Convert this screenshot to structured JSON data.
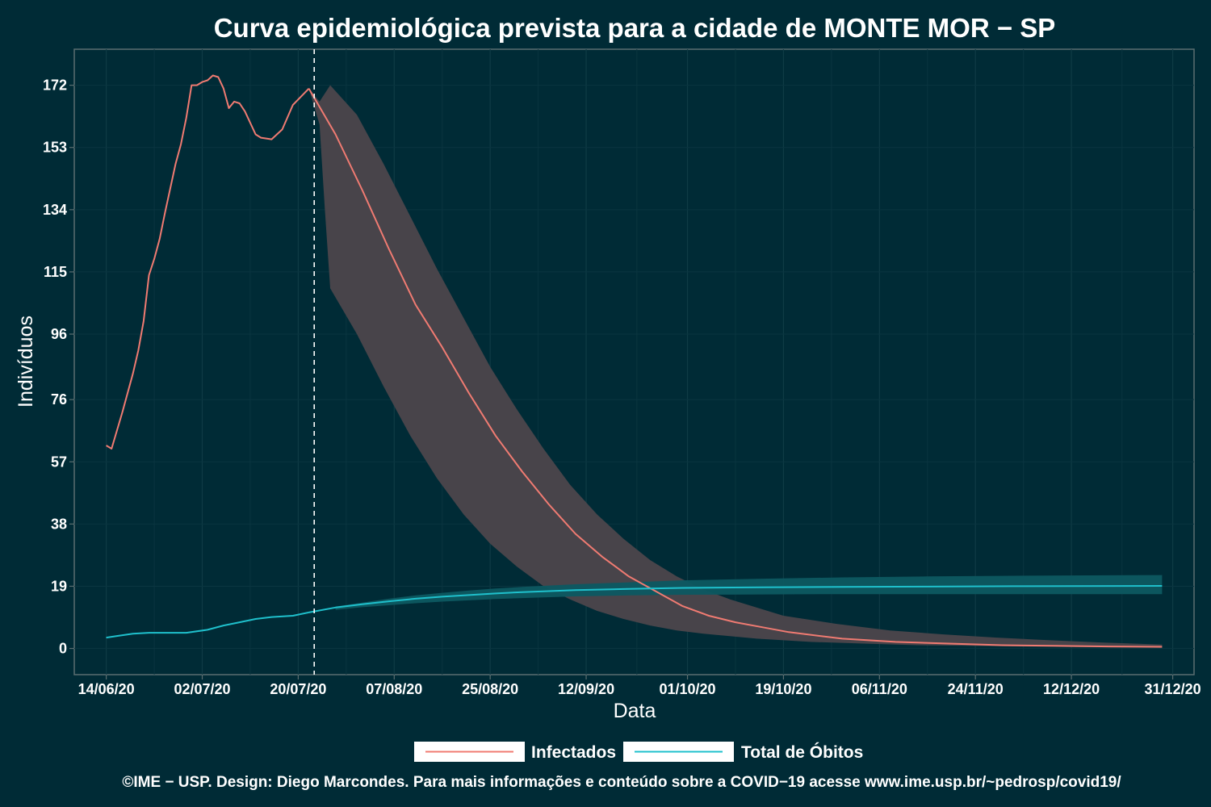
{
  "chart_data": {
    "type": "line",
    "title": "Curva epidemiológica prevista para a cidade de MONTE MOR − SP",
    "xlabel": "Data",
    "ylabel": "Indivíduos",
    "x_ticks": [
      "14/06/20",
      "02/07/20",
      "20/07/20",
      "07/08/20",
      "25/08/20",
      "12/09/20",
      "01/10/20",
      "19/10/20",
      "06/11/20",
      "24/11/20",
      "12/12/20",
      "31/12/20"
    ],
    "y_ticks": [
      "0",
      "19",
      "38",
      "57",
      "76",
      "96",
      "115",
      "134",
      "153",
      "172"
    ],
    "ylim": [
      -8,
      183
    ],
    "xlim": [
      "2020-06-08",
      "2021-01-04"
    ],
    "forecast_start": "2020-07-23",
    "grid": true,
    "legend_position": "bottom",
    "series": [
      {
        "name": "Infectados",
        "color": "#f07b72",
        "observed": [
          [
            "2020-06-14",
            62
          ],
          [
            "2020-06-15",
            61
          ],
          [
            "2020-06-17",
            72
          ],
          [
            "2020-06-19",
            84
          ],
          [
            "2020-06-20",
            91
          ],
          [
            "2020-06-21",
            100
          ],
          [
            "2020-06-22",
            114
          ],
          [
            "2020-06-23",
            119
          ],
          [
            "2020-06-24",
            125
          ],
          [
            "2020-06-25",
            133
          ],
          [
            "2020-06-27",
            148
          ],
          [
            "2020-06-28",
            154
          ],
          [
            "2020-06-29",
            162
          ],
          [
            "2020-06-30",
            172
          ],
          [
            "2020-07-01",
            172
          ],
          [
            "2020-07-02",
            173
          ],
          [
            "2020-07-03",
            173.5
          ],
          [
            "2020-07-04",
            175
          ],
          [
            "2020-07-05",
            174.5
          ],
          [
            "2020-07-06",
            171
          ],
          [
            "2020-07-07",
            165
          ],
          [
            "2020-07-08",
            167
          ],
          [
            "2020-07-09",
            166.5
          ],
          [
            "2020-07-10",
            164
          ],
          [
            "2020-07-12",
            157
          ],
          [
            "2020-07-13",
            156
          ],
          [
            "2020-07-15",
            155.5
          ],
          [
            "2020-07-17",
            158.5
          ],
          [
            "2020-07-19",
            166
          ],
          [
            "2020-07-22",
            171
          ]
        ],
        "forecast": [
          [
            "2020-07-22",
            171
          ],
          [
            "2020-07-27",
            157
          ],
          [
            "2020-08-01",
            140
          ],
          [
            "2020-08-06",
            122
          ],
          [
            "2020-08-11",
            105
          ],
          [
            "2020-08-16",
            92
          ],
          [
            "2020-08-21",
            78
          ],
          [
            "2020-08-26",
            65
          ],
          [
            "2020-08-31",
            54
          ],
          [
            "2020-09-05",
            44
          ],
          [
            "2020-09-10",
            35
          ],
          [
            "2020-09-15",
            28
          ],
          [
            "2020-09-20",
            22
          ],
          [
            "2020-09-25",
            17.5
          ],
          [
            "2020-09-30",
            13
          ],
          [
            "2020-10-05",
            10
          ],
          [
            "2020-10-10",
            8
          ],
          [
            "2020-10-15",
            6.5
          ],
          [
            "2020-10-20",
            5
          ],
          [
            "2020-10-30",
            3
          ],
          [
            "2020-11-09",
            2
          ],
          [
            "2020-11-19",
            1.5
          ],
          [
            "2020-11-29",
            1
          ],
          [
            "2020-12-09",
            0.8
          ],
          [
            "2020-12-19",
            0.6
          ],
          [
            "2020-12-29",
            0.5
          ]
        ],
        "band_upper": [
          [
            "2020-07-22",
            171
          ],
          [
            "2020-07-24",
            167
          ],
          [
            "2020-07-26",
            172
          ],
          [
            "2020-07-31",
            163
          ],
          [
            "2020-08-05",
            148
          ],
          [
            "2020-08-10",
            132
          ],
          [
            "2020-08-15",
            116
          ],
          [
            "2020-08-20",
            101
          ],
          [
            "2020-08-25",
            86
          ],
          [
            "2020-08-30",
            73
          ],
          [
            "2020-09-04",
            61
          ],
          [
            "2020-09-09",
            50
          ],
          [
            "2020-09-14",
            41
          ],
          [
            "2020-09-19",
            33.5
          ],
          [
            "2020-09-24",
            27
          ],
          [
            "2020-09-29",
            22
          ],
          [
            "2020-10-04",
            18
          ],
          [
            "2020-10-09",
            15
          ],
          [
            "2020-10-19",
            10
          ],
          [
            "2020-10-29",
            7.5
          ],
          [
            "2020-11-08",
            5.5
          ],
          [
            "2020-11-18",
            4.3
          ],
          [
            "2020-11-28",
            3.3
          ],
          [
            "2020-12-08",
            2.5
          ],
          [
            "2020-12-18",
            1.8
          ],
          [
            "2020-12-29",
            1.2
          ]
        ],
        "band_lower": [
          [
            "2020-07-22",
            171
          ],
          [
            "2020-07-24",
            160
          ],
          [
            "2020-07-25",
            134
          ],
          [
            "2020-07-26",
            110
          ],
          [
            "2020-07-31",
            96
          ],
          [
            "2020-08-05",
            80
          ],
          [
            "2020-08-10",
            65
          ],
          [
            "2020-08-15",
            52
          ],
          [
            "2020-08-20",
            41
          ],
          [
            "2020-08-25",
            32
          ],
          [
            "2020-08-30",
            25
          ],
          [
            "2020-09-04",
            19
          ],
          [
            "2020-09-09",
            15
          ],
          [
            "2020-09-14",
            11.5
          ],
          [
            "2020-09-19",
            9
          ],
          [
            "2020-09-24",
            7
          ],
          [
            "2020-09-29",
            5.5
          ],
          [
            "2020-10-04",
            4.5
          ],
          [
            "2020-10-14",
            3
          ],
          [
            "2020-10-24",
            2
          ],
          [
            "2020-11-03",
            1.5
          ],
          [
            "2020-11-13",
            1
          ],
          [
            "2020-11-23",
            0.8
          ],
          [
            "2020-12-03",
            0.6
          ],
          [
            "2020-12-13",
            0.4
          ],
          [
            "2020-12-29",
            0.2
          ]
        ]
      },
      {
        "name": "Total de Óbitos",
        "color": "#1fc0cc",
        "observed": [
          [
            "2020-06-14",
            3.3
          ],
          [
            "2020-06-16",
            3.8
          ],
          [
            "2020-06-19",
            4.5
          ],
          [
            "2020-06-22",
            4.8
          ],
          [
            "2020-06-25",
            4.8
          ],
          [
            "2020-06-29",
            4.8
          ],
          [
            "2020-07-03",
            5.7
          ],
          [
            "2020-07-06",
            7
          ],
          [
            "2020-07-09",
            8
          ],
          [
            "2020-07-12",
            9
          ],
          [
            "2020-07-15",
            9.6
          ],
          [
            "2020-07-19",
            10
          ],
          [
            "2020-07-22",
            11
          ]
        ],
        "forecast": [
          [
            "2020-07-22",
            11
          ],
          [
            "2020-07-27",
            12.5
          ],
          [
            "2020-08-01",
            13.5
          ],
          [
            "2020-08-06",
            14.4
          ],
          [
            "2020-08-11",
            15.2
          ],
          [
            "2020-08-16",
            15.8
          ],
          [
            "2020-08-21",
            16.3
          ],
          [
            "2020-08-26",
            16.8
          ],
          [
            "2020-08-31",
            17.2
          ],
          [
            "2020-09-10",
            17.8
          ],
          [
            "2020-09-20",
            18.2
          ],
          [
            "2020-09-30",
            18.5
          ],
          [
            "2020-10-15",
            18.7
          ],
          [
            "2020-10-30",
            18.8
          ],
          [
            "2020-11-15",
            18.9
          ],
          [
            "2020-12-01",
            19
          ],
          [
            "2020-12-29",
            19.1
          ]
        ],
        "band_upper": [
          [
            "2020-07-27",
            12.8
          ],
          [
            "2020-08-01",
            14
          ],
          [
            "2020-08-06",
            15.2
          ],
          [
            "2020-08-11",
            16.2
          ],
          [
            "2020-08-16",
            17
          ],
          [
            "2020-08-21",
            17.7
          ],
          [
            "2020-08-26",
            18.3
          ],
          [
            "2020-08-31",
            18.8
          ],
          [
            "2020-09-10",
            19.6
          ],
          [
            "2020-09-20",
            20.2
          ],
          [
            "2020-09-30",
            20.8
          ],
          [
            "2020-10-15",
            21.3
          ],
          [
            "2020-10-30",
            21.7
          ],
          [
            "2020-11-15",
            22
          ],
          [
            "2020-12-01",
            22.2
          ],
          [
            "2020-12-29",
            22.4
          ]
        ],
        "band_lower": [
          [
            "2020-07-27",
            11.8
          ],
          [
            "2020-08-01",
            12.6
          ],
          [
            "2020-08-06",
            13.2
          ],
          [
            "2020-08-11",
            13.8
          ],
          [
            "2020-08-16",
            14.3
          ],
          [
            "2020-08-21",
            14.7
          ],
          [
            "2020-08-26",
            15.1
          ],
          [
            "2020-08-31",
            15.4
          ],
          [
            "2020-09-10",
            15.9
          ],
          [
            "2020-09-20",
            16.2
          ],
          [
            "2020-09-30",
            16.4
          ],
          [
            "2020-10-15",
            16.5
          ],
          [
            "2020-10-30",
            16.6
          ],
          [
            "2020-11-15",
            16.6
          ],
          [
            "2020-12-01",
            16.6
          ],
          [
            "2020-12-29",
            16.6
          ]
        ]
      }
    ]
  },
  "legend": {
    "infected_label": "Infectados",
    "deaths_label": "Total de Óbitos"
  },
  "caption": "©IME − USP. Design: Diego Marcondes. Para mais informações e conteúdo sobre a COVID−19 acesse www.ime.usp.br/~pedrosp/covid19/",
  "colors": {
    "background": "#002b36",
    "band": "#48444a",
    "infected": "#f07b72",
    "deaths": "#1fc0cc",
    "deaths_band": "#0d5961"
  }
}
